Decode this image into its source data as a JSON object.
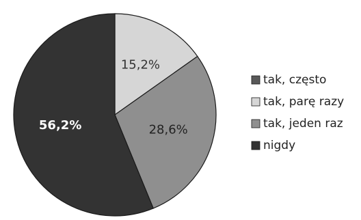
{
  "chart_data": {
    "type": "pie",
    "slices": [
      {
        "label": "tak, parę razy",
        "value": 15.2,
        "display": "15,2%",
        "color": "#d6d6d6",
        "label_color": "#333333"
      },
      {
        "label": "tak, jeden raz",
        "value": 28.6,
        "display": "28,6%",
        "color": "#8f8f8f",
        "label_color": "#222222"
      },
      {
        "label": "nigdy",
        "value": 56.2,
        "display": "56,2%",
        "color": "#333333",
        "label_color": "#ffffff"
      }
    ],
    "legend": {
      "position": "right",
      "items": [
        {
          "label": "tak, często",
          "color": "#595959"
        },
        {
          "label": "tak, parę razy",
          "color": "#d6d6d6"
        },
        {
          "label": "tak, jeden raz",
          "color": "#8f8f8f"
        },
        {
          "label": "nigdy",
          "color": "#333333"
        }
      ]
    },
    "stroke_color": "#1a1a1a"
  }
}
